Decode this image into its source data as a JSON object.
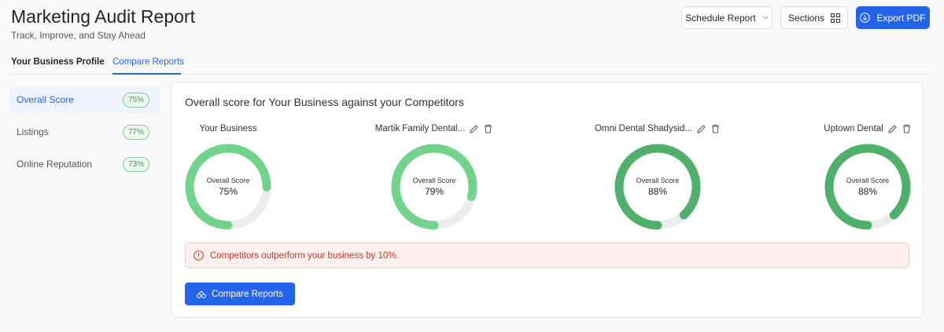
{
  "header": {
    "title": "Marketing Audit Report",
    "subtitle": "Track, Improve, and Stay Ahead",
    "buttons": {
      "schedule": "Schedule Report",
      "sections": "Sections",
      "export": "Export PDF"
    }
  },
  "tabs": [
    "Your Business Profile",
    "Compare Reports"
  ],
  "sidebar": [
    {
      "name": "Overall Score",
      "badge": "75%"
    },
    {
      "name": "Listings",
      "badge": "77%"
    },
    {
      "name": "Online Reputation",
      "badge": "73%"
    }
  ],
  "card": {
    "title": "Overall score for Your Business against your Competitors",
    "score_label": "Overall Score",
    "range": [
      0,
      100
    ],
    "gauges": [
      {
        "name": "Your Business",
        "score": {
          "value": 75,
          "label": "75%"
        },
        "color": "#72d38d"
      },
      {
        "name": "Martik Family Dental...",
        "score": {
          "value": 79,
          "label": "79%"
        },
        "color": "#72d38d"
      },
      {
        "name": "Omni Dental Shadysid...",
        "score": {
          "value": 88,
          "label": "88%"
        },
        "color": "#4fb06c"
      },
      {
        "name": "Uptown Dental",
        "score": {
          "value": 88,
          "label": "88%"
        },
        "color": "#4fb06c"
      }
    ],
    "alert": "Competitors outperform your business by 10%.",
    "button": "Compare Reports"
  }
}
